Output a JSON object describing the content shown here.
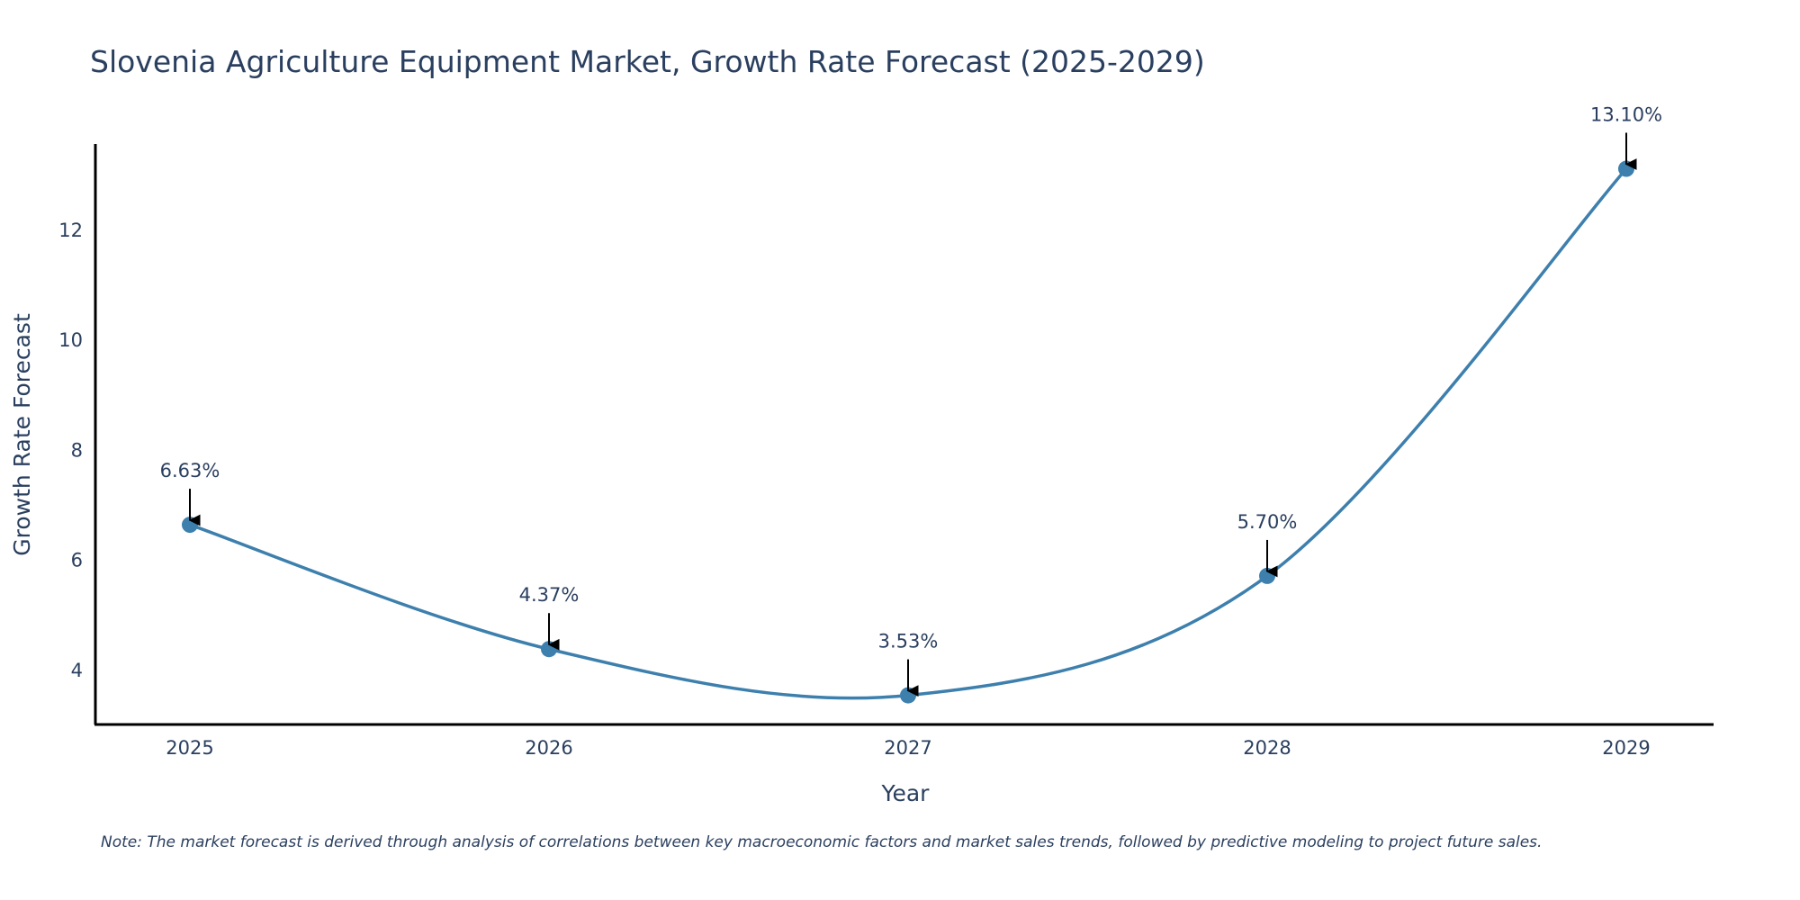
{
  "chart_data": {
    "type": "line",
    "title": "Slovenia Agriculture Equipment Market, Growth Rate Forecast (2025-2029)",
    "xlabel": "Year",
    "ylabel": "Growth Rate Forecast",
    "categories": [
      "2025",
      "2026",
      "2027",
      "2028",
      "2029"
    ],
    "values": [
      6.63,
      4.37,
      3.53,
      5.7,
      13.1
    ],
    "data_labels": [
      "6.63%",
      "4.37%",
      "3.53%",
      "5.70%",
      "13.10%"
    ],
    "yticks": [
      4,
      6,
      8,
      10,
      12
    ],
    "ylim": [
      3.0,
      13.55
    ],
    "grid": false,
    "line_shape": "spline",
    "line_color": "#3d7fad",
    "marker_color": "#3d7fad",
    "annotation_arrow_color": "#000000",
    "note": "Note: The market forecast is derived through analysis of correlations between key macroeconomic factors and market sales trends, followed by predictive modeling to project future sales."
  }
}
